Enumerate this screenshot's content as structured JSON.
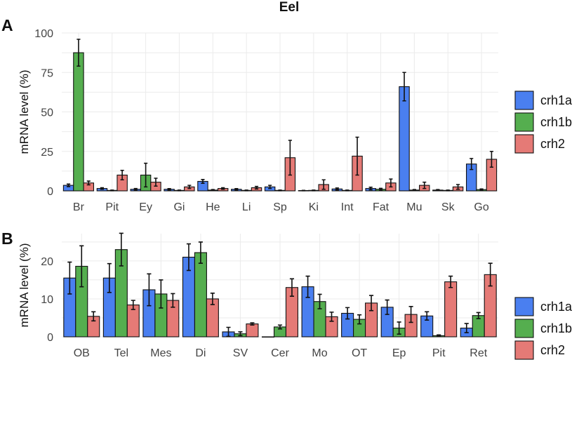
{
  "title": "Eel",
  "colors": {
    "crh1a": "#4a7ff0",
    "crh1b": "#55ae4f",
    "crh2": "#e57a76"
  },
  "chart_data": [
    {
      "type": "bar",
      "panel": "A",
      "ylabel": "mRNA level (%)",
      "xlabel": "",
      "ylim": [
        0,
        100
      ],
      "yticks": [
        0,
        25,
        50,
        75,
        100
      ],
      "legend": "right",
      "categories": [
        "Br",
        "Pit",
        "Ey",
        "Gi",
        "He",
        "Li",
        "Sp",
        "Ki",
        "Int",
        "Fat",
        "Mu",
        "Sk",
        "Go"
      ],
      "series": [
        {
          "name": "crh1a",
          "values": [
            3.5,
            1.5,
            1.0,
            1.0,
            6.0,
            1.0,
            2.5,
            0.2,
            1.2,
            1.5,
            66,
            0.5,
            17
          ],
          "errors": [
            0.8,
            0.5,
            0.5,
            0.4,
            1.2,
            0.4,
            1.0,
            0.1,
            0.6,
            0.8,
            9,
            0.3,
            3.5
          ]
        },
        {
          "name": "crh1b",
          "values": [
            87.5,
            0.3,
            10,
            0.3,
            0.5,
            0.3,
            0.3,
            0.3,
            0.3,
            1.0,
            0.5,
            0.3,
            0.8
          ],
          "errors": [
            8.5,
            0.2,
            7.5,
            0.2,
            0.3,
            0.2,
            0.2,
            0.2,
            0.2,
            0.6,
            0.3,
            0.2,
            0.4
          ]
        },
        {
          "name": "crh2",
          "values": [
            5,
            10,
            5.5,
            2.5,
            1.5,
            2,
            21,
            4,
            22,
            5,
            3.5,
            2.5,
            20
          ],
          "errors": [
            1.2,
            3,
            2.5,
            1.0,
            0.5,
            0.8,
            11,
            3,
            12,
            2.5,
            2.0,
            1.5,
            5
          ]
        }
      ]
    },
    {
      "type": "bar",
      "panel": "B",
      "ylabel": "mRNA level (%)",
      "xlabel": "",
      "ylim": [
        0,
        27.2
      ],
      "yticks": [
        0,
        10,
        20
      ],
      "legend": "right",
      "categories": [
        "OB",
        "Tel",
        "Mes",
        "Di",
        "SV",
        "Cer",
        "Mo",
        "OT",
        "Ep",
        "Pit",
        "Ret"
      ],
      "series": [
        {
          "name": "crh1a",
          "values": [
            15.5,
            15.5,
            12.4,
            21.0,
            1.3,
            0.0,
            13.2,
            6.2,
            7.8,
            5.5,
            2.3
          ],
          "errors": [
            4.2,
            3.8,
            4.2,
            3.5,
            1.2,
            0.0,
            2.8,
            1.5,
            1.9,
            1.1,
            1.2
          ]
        },
        {
          "name": "crh1b",
          "values": [
            18.6,
            23.0,
            11.3,
            22.2,
            0.8,
            2.6,
            9.3,
            4.6,
            2.3,
            0.3,
            5.6
          ],
          "errors": [
            5.4,
            4.3,
            3.7,
            2.8,
            0.5,
            0.5,
            1.9,
            1.2,
            1.6,
            0.2,
            0.8
          ]
        },
        {
          "name": "crh2",
          "values": [
            5.4,
            8.4,
            9.6,
            10.0,
            3.4,
            13.0,
            5.3,
            8.9,
            5.9,
            14.5,
            16.4
          ],
          "errors": [
            1.2,
            1.2,
            1.8,
            1.5,
            0.3,
            2.3,
            1.2,
            2.0,
            2.1,
            1.5,
            3.0
          ]
        }
      ]
    }
  ]
}
